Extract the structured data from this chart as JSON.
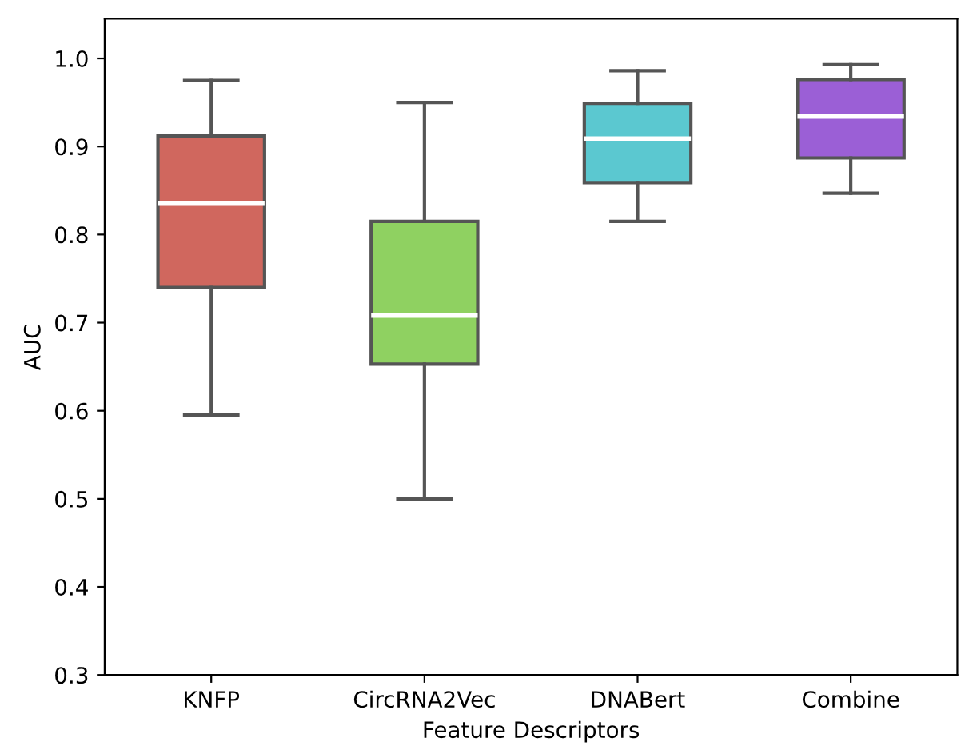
{
  "chart_data": {
    "type": "box",
    "xlabel": "Feature Descriptors",
    "ylabel": "AUC",
    "categories": [
      "KNFP",
      "CircRNA2Vec",
      "DNABert",
      "Combine"
    ],
    "colors": [
      "#d0675e",
      "#8fd161",
      "#5bc8d0",
      "#9b5fd6"
    ],
    "boxes": [
      {
        "low": 0.595,
        "q1": 0.74,
        "median": 0.835,
        "q3": 0.912,
        "high": 0.975
      },
      {
        "low": 0.5,
        "q1": 0.653,
        "median": 0.708,
        "q3": 0.815,
        "high": 0.95
      },
      {
        "low": 0.815,
        "q1": 0.859,
        "median": 0.909,
        "q3": 0.949,
        "high": 0.986
      },
      {
        "low": 0.847,
        "q1": 0.887,
        "median": 0.934,
        "q3": 0.976,
        "high": 0.993
      }
    ],
    "ylim": [
      0.3,
      1.045
    ],
    "yticks": [
      0.3,
      0.4,
      0.5,
      0.6,
      0.7,
      0.8,
      0.9,
      {
        "value": 1,
        "label": "1.0"
      }
    ]
  }
}
